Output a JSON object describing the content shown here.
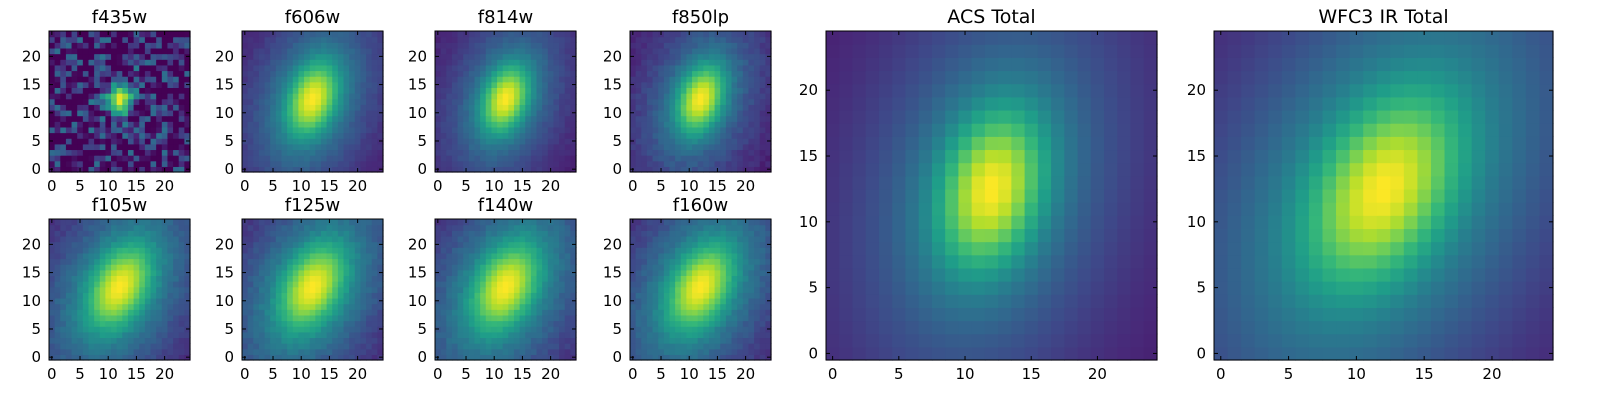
{
  "colormap": "viridis",
  "colormap_stops": [
    "#440154",
    "#482878",
    "#3e4989",
    "#31688e",
    "#26828e",
    "#1f9e89",
    "#35b779",
    "#6ece58",
    "#b5de2b",
    "#fde725"
  ],
  "chart_data": [
    {
      "type": "heatmap",
      "title": "f435w",
      "grid_size": 25,
      "center": [
        12,
        12.5
      ],
      "spread": [
        1.4,
        1.8
      ],
      "rotation_deg": 0,
      "halo": 0.1,
      "noise": 0.3,
      "xlim": [
        -0.5,
        24.5
      ],
      "ylim": [
        -0.5,
        24.5
      ],
      "xticks": [
        0,
        5,
        10,
        15,
        20
      ],
      "yticks": [
        0,
        5,
        10,
        15,
        20
      ]
    },
    {
      "type": "heatmap",
      "title": "f606w",
      "grid_size": 25,
      "center": [
        12,
        12.5
      ],
      "spread": [
        2.8,
        4.5
      ],
      "rotation_deg": 20,
      "halo": 0.45,
      "noise": 0.02,
      "xlim": [
        -0.5,
        24.5
      ],
      "ylim": [
        -0.5,
        24.5
      ],
      "xticks": [
        0,
        5,
        10,
        15,
        20
      ],
      "yticks": [
        0,
        5,
        10,
        15,
        20
      ]
    },
    {
      "type": "heatmap",
      "title": "f814w",
      "grid_size": 25,
      "center": [
        12,
        12.5
      ],
      "spread": [
        2.6,
        4.2
      ],
      "rotation_deg": 20,
      "halo": 0.4,
      "noise": 0.02,
      "xlim": [
        -0.5,
        24.5
      ],
      "ylim": [
        -0.5,
        24.5
      ],
      "xticks": [
        0,
        5,
        10,
        15,
        20
      ],
      "yticks": [
        0,
        5,
        10,
        15,
        20
      ]
    },
    {
      "type": "heatmap",
      "title": "f850lp",
      "grid_size": 25,
      "center": [
        12,
        12.5
      ],
      "spread": [
        2.6,
        4.2
      ],
      "rotation_deg": 20,
      "halo": 0.4,
      "noise": 0.03,
      "xlim": [
        -0.5,
        24.5
      ],
      "ylim": [
        -0.5,
        24.5
      ],
      "xticks": [
        0,
        5,
        10,
        15,
        20
      ],
      "yticks": [
        0,
        5,
        10,
        15,
        20
      ]
    },
    {
      "type": "heatmap",
      "title": "f105w",
      "grid_size": 25,
      "center": [
        12,
        12.5
      ],
      "spread": [
        3.2,
        5.2
      ],
      "rotation_deg": 28,
      "halo": 0.55,
      "noise": 0.03,
      "xlim": [
        -0.5,
        24.5
      ],
      "ylim": [
        -0.5,
        24.5
      ],
      "xticks": [
        0,
        5,
        10,
        15,
        20
      ],
      "yticks": [
        0,
        5,
        10,
        15,
        20
      ]
    },
    {
      "type": "heatmap",
      "title": "f125w",
      "grid_size": 25,
      "center": [
        12,
        12.5
      ],
      "spread": [
        3.3,
        5.3
      ],
      "rotation_deg": 28,
      "halo": 0.55,
      "noise": 0.03,
      "xlim": [
        -0.5,
        24.5
      ],
      "ylim": [
        -0.5,
        24.5
      ],
      "xticks": [
        0,
        5,
        10,
        15,
        20
      ],
      "yticks": [
        0,
        5,
        10,
        15,
        20
      ]
    },
    {
      "type": "heatmap",
      "title": "f140w",
      "grid_size": 25,
      "center": [
        12,
        12.5
      ],
      "spread": [
        3.4,
        5.4
      ],
      "rotation_deg": 28,
      "halo": 0.55,
      "noise": 0.03,
      "xlim": [
        -0.5,
        24.5
      ],
      "ylim": [
        -0.5,
        24.5
      ],
      "xticks": [
        0,
        5,
        10,
        15,
        20
      ],
      "yticks": [
        0,
        5,
        10,
        15,
        20
      ]
    },
    {
      "type": "heatmap",
      "title": "f160w",
      "grid_size": 25,
      "center": [
        12,
        12.5
      ],
      "spread": [
        3.3,
        5.3
      ],
      "rotation_deg": 28,
      "halo": 0.55,
      "noise": 0.03,
      "xlim": [
        -0.5,
        24.5
      ],
      "ylim": [
        -0.5,
        24.5
      ],
      "xticks": [
        0,
        5,
        10,
        15,
        20
      ],
      "yticks": [
        0,
        5,
        10,
        15,
        20
      ]
    },
    {
      "type": "heatmap",
      "title": "ACS Total",
      "grid_size": 25,
      "center": [
        12,
        12.5
      ],
      "spread": [
        2.6,
        4.2
      ],
      "rotation_deg": 15,
      "halo": 0.4,
      "noise": 0.0,
      "xlim": [
        -0.5,
        24.5
      ],
      "ylim": [
        -0.5,
        24.5
      ],
      "xticks": [
        0,
        5,
        10,
        15,
        20
      ],
      "yticks": [
        0,
        5,
        10,
        15,
        20
      ]
    },
    {
      "type": "heatmap",
      "title": "WFC3 IR Total",
      "grid_size": 25,
      "center": [
        12,
        12.5
      ],
      "spread": [
        3.2,
        5.2
      ],
      "rotation_deg": 28,
      "halo": 0.55,
      "noise": 0.0,
      "xlim": [
        -0.5,
        24.5
      ],
      "ylim": [
        -0.5,
        24.5
      ],
      "xticks": [
        0,
        5,
        10,
        15,
        20
      ],
      "yticks": [
        0,
        5,
        10,
        15,
        20
      ]
    }
  ]
}
